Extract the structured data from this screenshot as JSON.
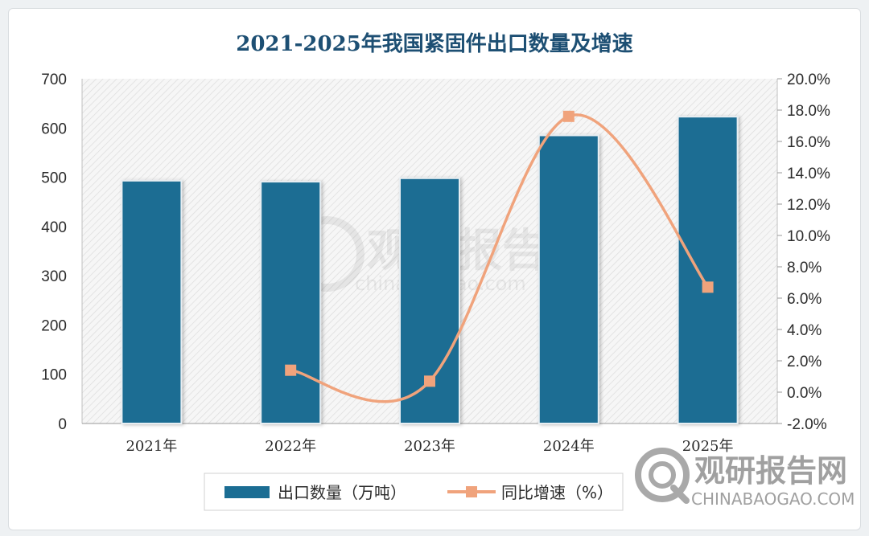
{
  "chart_data": {
    "type": "bar",
    "title": "2021-2025年我国紧固件出口数量及增速",
    "categories": [
      "2021年",
      "2022年",
      "2023年",
      "2024年",
      "2025年"
    ],
    "series": [
      {
        "name": "出口数量（万吨）",
        "type": "bar",
        "axis": "left",
        "values": [
          493,
          491,
          498,
          585,
          623
        ],
        "color": "#1b6d93"
      },
      {
        "name": "同比增速（%）",
        "type": "line",
        "axis": "right",
        "values": [
          null,
          1.4,
          0.7,
          17.6,
          6.7
        ],
        "color": "#f0a37c"
      }
    ],
    "y_left": {
      "min": 0,
      "max": 700,
      "step": 100,
      "ticks": [
        "0",
        "100",
        "200",
        "300",
        "400",
        "500",
        "600",
        "700"
      ]
    },
    "y_right": {
      "min": -2.0,
      "max": 20.0,
      "step": 2.0,
      "ticks": [
        "-2.0%",
        "0.0%",
        "2.0%",
        "4.0%",
        "6.0%",
        "8.0%",
        "10.0%",
        "12.0%",
        "14.0%",
        "16.0%",
        "18.0%",
        "20.0%"
      ]
    },
    "legend_placement": "bottom",
    "grid": false
  },
  "watermark": {
    "center_cn": "观研报告网",
    "center_en": "chinabaogao.com",
    "corner_cn": "观研报告网",
    "corner_en": "CHINABAOGAO.COM"
  }
}
